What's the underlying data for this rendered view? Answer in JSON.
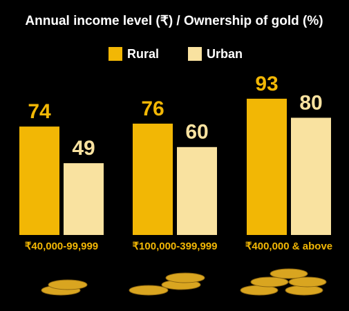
{
  "chart_data": {
    "type": "bar",
    "title": "Annual income level (₹) / Ownership of gold (%)",
    "categories": [
      "₹40,000-99,999",
      "₹100,000-399,999",
      "₹400,000 & above"
    ],
    "series": [
      {
        "name": "Rural",
        "color": "#f2b705",
        "values": [
          74,
          76,
          93
        ]
      },
      {
        "name": "Urban",
        "color": "#f9e2a0",
        "values": [
          49,
          60,
          80
        ]
      }
    ]
  }
}
